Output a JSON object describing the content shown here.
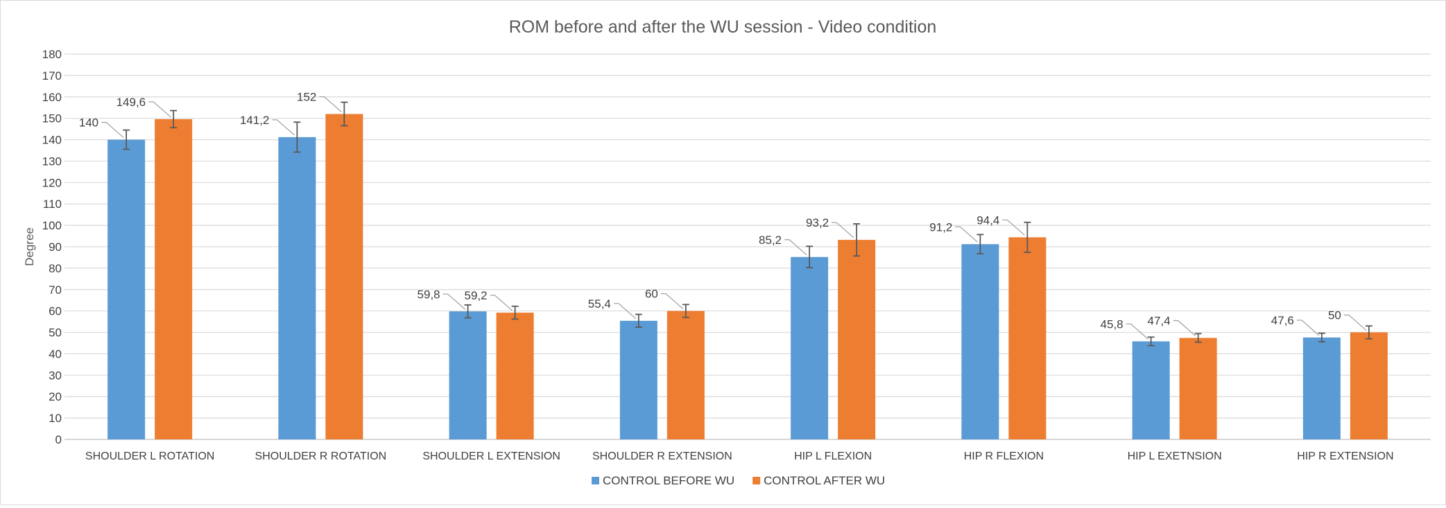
{
  "chart_data": {
    "type": "bar",
    "title": "ROM before and after the WU session - Video condition",
    "xlabel": "",
    "ylabel": "Degree",
    "ylim": [
      0,
      180
    ],
    "yticks": [
      0,
      10,
      20,
      30,
      40,
      50,
      60,
      70,
      80,
      90,
      100,
      110,
      120,
      130,
      140,
      150,
      160,
      170,
      180
    ],
    "grid": true,
    "legend_position": "bottom",
    "categories": [
      "SHOULDER L ROTATION",
      "SHOULDER R ROTATION",
      "SHOULDER L EXTENSION",
      "SHOULDER R EXTENSION",
      "HIP L FLEXION",
      "HIP R FLEXION",
      "HIP L EXETNSION",
      "HIP R EXTENSION"
    ],
    "series": [
      {
        "name": "CONTROL BEFORE WU",
        "color": "#5B9BD5",
        "values": [
          140,
          141.2,
          59.8,
          55.4,
          85.2,
          91.2,
          45.8,
          47.6
        ],
        "labels": [
          "140",
          "141,2",
          "59,8",
          "55,4",
          "85,2",
          "91,2",
          "45,8",
          "47,6"
        ],
        "error": [
          4.5,
          7,
          3,
          3,
          5,
          4.5,
          2,
          2
        ]
      },
      {
        "name": "CONTROL AFTER WU",
        "color": "#ED7D31",
        "values": [
          149.6,
          152,
          59.2,
          60,
          93.2,
          94.4,
          47.4,
          50
        ],
        "labels": [
          "149,6",
          "152",
          "59,2",
          "60",
          "93,2",
          "94,4",
          "47,4",
          "50"
        ],
        "error": [
          4,
          5.5,
          3,
          3,
          7.5,
          7,
          2,
          3
        ]
      }
    ]
  }
}
